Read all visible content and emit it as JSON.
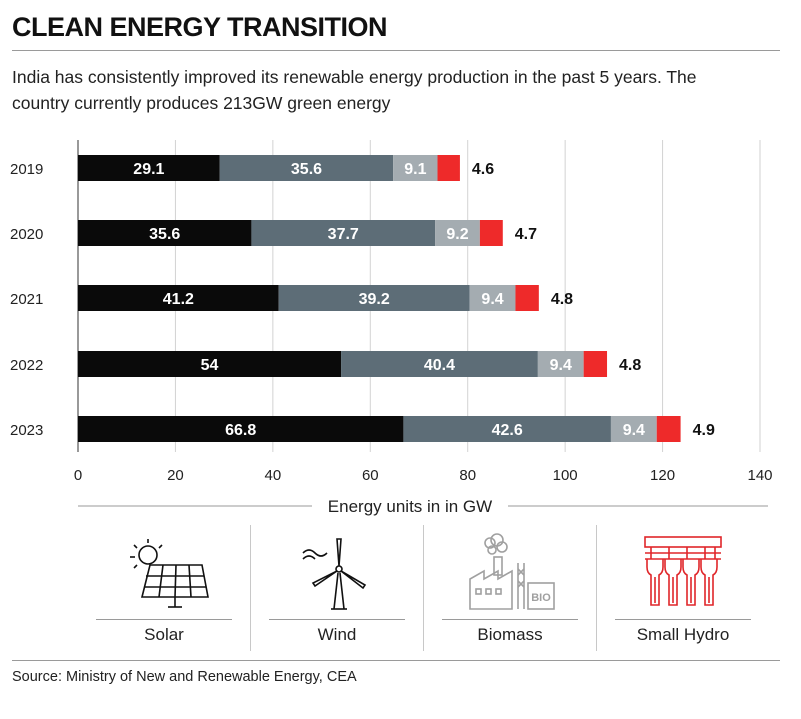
{
  "header": {
    "title": "CLEAN ENERGY TRANSITION",
    "subtitle": "India has consistently improved its renewable energy production in the past 5 years. The country currently produces 213GW green energy"
  },
  "chart_data": {
    "type": "bar",
    "orientation": "horizontal",
    "stacked": true,
    "categories": [
      "2019",
      "2020",
      "2021",
      "2022",
      "2023"
    ],
    "series": [
      {
        "name": "Solar",
        "values": [
          29.1,
          35.6,
          41.2,
          54,
          66.8
        ],
        "color": "#0a0a0a"
      },
      {
        "name": "Wind",
        "values": [
          35.6,
          37.7,
          39.2,
          40.4,
          42.6
        ],
        "color": "#5d6d77"
      },
      {
        "name": "Biomass",
        "values": [
          9.1,
          9.2,
          9.4,
          9.4,
          9.4
        ],
        "color": "#a4acb1"
      },
      {
        "name": "Small Hydro",
        "values": [
          4.6,
          4.7,
          4.8,
          4.8,
          4.9
        ],
        "color": "#ee2a2a"
      }
    ],
    "xlabel": "Energy units in in GW",
    "xlim": [
      0,
      140
    ],
    "xticks": [
      0,
      20,
      40,
      60,
      80,
      100,
      120,
      140
    ],
    "grid": true
  },
  "legend": [
    {
      "label": "Solar",
      "icon": "solar-panel-icon"
    },
    {
      "label": "Wind",
      "icon": "wind-turbine-icon"
    },
    {
      "label": "Biomass",
      "icon": "biomass-factory-icon",
      "icon_text": "BIO"
    },
    {
      "label": "Small Hydro",
      "icon": "hydro-dam-icon"
    }
  ],
  "footer": {
    "source": "Source: Ministry of New and Renewable Energy, CEA"
  }
}
